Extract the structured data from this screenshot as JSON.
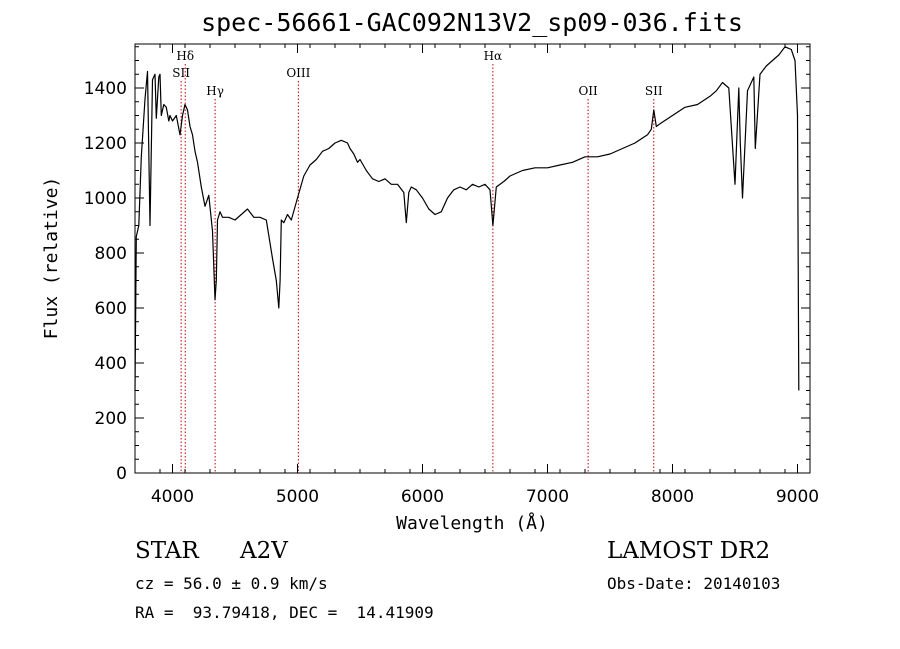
{
  "chart_data": {
    "type": "line",
    "title": "spec-56661-GAC092N13V2_sp09-036.fits",
    "xlabel": "Wavelength (Å)",
    "ylabel": "Flux (relative)",
    "xlim": [
      3700,
      9100
    ],
    "ylim": [
      0,
      1560
    ],
    "xticks": [
      4000,
      5000,
      6000,
      7000,
      8000,
      9000
    ],
    "yticks": [
      0,
      200,
      400,
      600,
      800,
      1000,
      1200,
      1400
    ],
    "grid": false,
    "legend": "none",
    "line_color": "#000000",
    "marker_color": "#cc0000",
    "spectral_lines": [
      {
        "label": "Hδ",
        "wavelength": 4102,
        "row": 0
      },
      {
        "label": "SII",
        "wavelength": 4069,
        "row": 1
      },
      {
        "label": "Hγ",
        "wavelength": 4341,
        "row": 2
      },
      {
        "label": "OIII",
        "wavelength": 5007,
        "row": 1
      },
      {
        "label": "Hα",
        "wavelength": 6563,
        "row": 0
      },
      {
        "label": "OII",
        "wavelength": 7325,
        "row": 2
      },
      {
        "label": "SII",
        "wavelength": 7850,
        "row": 2
      }
    ],
    "series": [
      {
        "x": [
          3700,
          3710,
          3730,
          3750,
          3780,
          3800,
          3820,
          3840,
          3860,
          3870,
          3890,
          3900,
          3910,
          3930,
          3950,
          3970,
          3980,
          4000,
          4030,
          4060,
          4080,
          4100,
          4120,
          4140,
          4160,
          4180,
          4200,
          4230,
          4260,
          4290,
          4320,
          4340,
          4350,
          4360,
          4380,
          4400,
          4450,
          4500,
          4550,
          4600,
          4650,
          4700,
          4750,
          4800,
          4830,
          4850,
          4861,
          4870,
          4890,
          4920,
          4950,
          5000,
          5050,
          5100,
          5150,
          5200,
          5250,
          5300,
          5350,
          5400,
          5420,
          5450,
          5480,
          5500,
          5550,
          5600,
          5650,
          5700,
          5750,
          5800,
          5850,
          5870,
          5890,
          5910,
          5950,
          6000,
          6050,
          6100,
          6150,
          6200,
          6250,
          6300,
          6350,
          6400,
          6450,
          6500,
          6540,
          6563,
          6590,
          6650,
          6700,
          6800,
          6900,
          7000,
          7100,
          7200,
          7300,
          7400,
          7500,
          7600,
          7700,
          7800,
          7830,
          7850,
          7870,
          7900,
          8000,
          8100,
          8200,
          8300,
          8350,
          8400,
          8450,
          8500,
          8530,
          8542,
          8560,
          8600,
          8650,
          8662,
          8700,
          8750,
          8800,
          8850,
          8900,
          8950,
          8980,
          9000,
          9010
        ],
        "y": [
          300,
          860,
          900,
          1150,
          1360,
          1460,
          900,
          1430,
          1450,
          1290,
          1440,
          1450,
          1300,
          1340,
          1330,
          1280,
          1300,
          1280,
          1300,
          1230,
          1300,
          1340,
          1320,
          1260,
          1230,
          1170,
          1130,
          1040,
          970,
          1010,
          880,
          630,
          700,
          920,
          950,
          930,
          930,
          920,
          940,
          960,
          930,
          930,
          920,
          780,
          700,
          600,
          700,
          920,
          910,
          940,
          920,
          1000,
          1080,
          1120,
          1140,
          1170,
          1180,
          1200,
          1210,
          1200,
          1180,
          1160,
          1130,
          1140,
          1100,
          1070,
          1060,
          1070,
          1050,
          1050,
          1020,
          910,
          1020,
          1040,
          1030,
          1000,
          960,
          940,
          950,
          1000,
          1030,
          1040,
          1030,
          1050,
          1040,
          1050,
          1030,
          900,
          1040,
          1060,
          1080,
          1100,
          1110,
          1110,
          1120,
          1130,
          1150,
          1150,
          1160,
          1180,
          1200,
          1230,
          1250,
          1320,
          1260,
          1270,
          1300,
          1330,
          1340,
          1370,
          1390,
          1420,
          1400,
          1050,
          1400,
          1200,
          1000,
          1390,
          1440,
          1180,
          1450,
          1480,
          1500,
          1520,
          1550,
          1540,
          1500,
          1300,
          300
        ]
      }
    ]
  },
  "footer": {
    "object_type": "STAR",
    "subclass": "A2V",
    "redshift": "cz = 56.0 ± 0.9 km/s",
    "coords": "RA =  93.79418, DEC =  14.41909",
    "survey": "LAMOST DR2",
    "obs_date": "Obs-Date: 20140103"
  }
}
